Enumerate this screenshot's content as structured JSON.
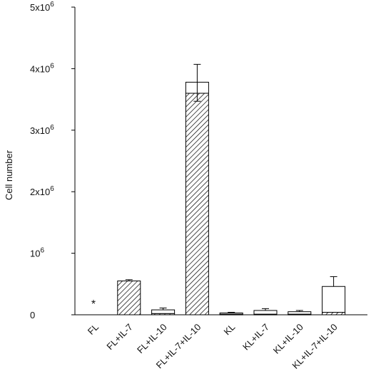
{
  "chart_data": {
    "type": "bar",
    "stacked": true,
    "categories": [
      "FL",
      "FL+IL-7",
      "FL+IL-10",
      "FL+IL-7+IL-10",
      "KL",
      "KL+IL-7",
      "KL+IL-10",
      "KL+IL-7+IL-10"
    ],
    "series": [
      {
        "values": [
          0,
          550000,
          20000,
          3600000,
          10000,
          10000,
          10000,
          40000
        ],
        "pattern": "hatched"
      },
      {
        "values": [
          0,
          0,
          60000,
          180000,
          20000,
          60000,
          40000,
          420000
        ],
        "pattern": "open"
      }
    ],
    "error_up": [
      0,
      20000,
      30000,
      290000,
      10000,
      30000,
      20000,
      160000
    ],
    "error_down": [
      0,
      0,
      0,
      310000,
      0,
      0,
      0,
      0
    ],
    "ylabel": "Cell number",
    "ylim": [
      0,
      5000000
    ],
    "yticks": [
      {
        "value": 0,
        "label": "0"
      },
      {
        "value": 1000000,
        "label": "10",
        "exp": "6"
      },
      {
        "value": 2000000,
        "label": "2x10",
        "exp": "6"
      },
      {
        "value": 3000000,
        "label": "3x10",
        "exp": "6"
      },
      {
        "value": 4000000,
        "label": "4x10",
        "exp": "6"
      },
      {
        "value": 5000000,
        "label": "5x10",
        "exp": "6"
      }
    ],
    "annotations": [
      {
        "category": "FL",
        "text": "*"
      }
    ],
    "grid": false,
    "colors": {
      "axis": "#000000",
      "bar_stroke": "#000000",
      "bar_fill": "#ffffff"
    }
  }
}
